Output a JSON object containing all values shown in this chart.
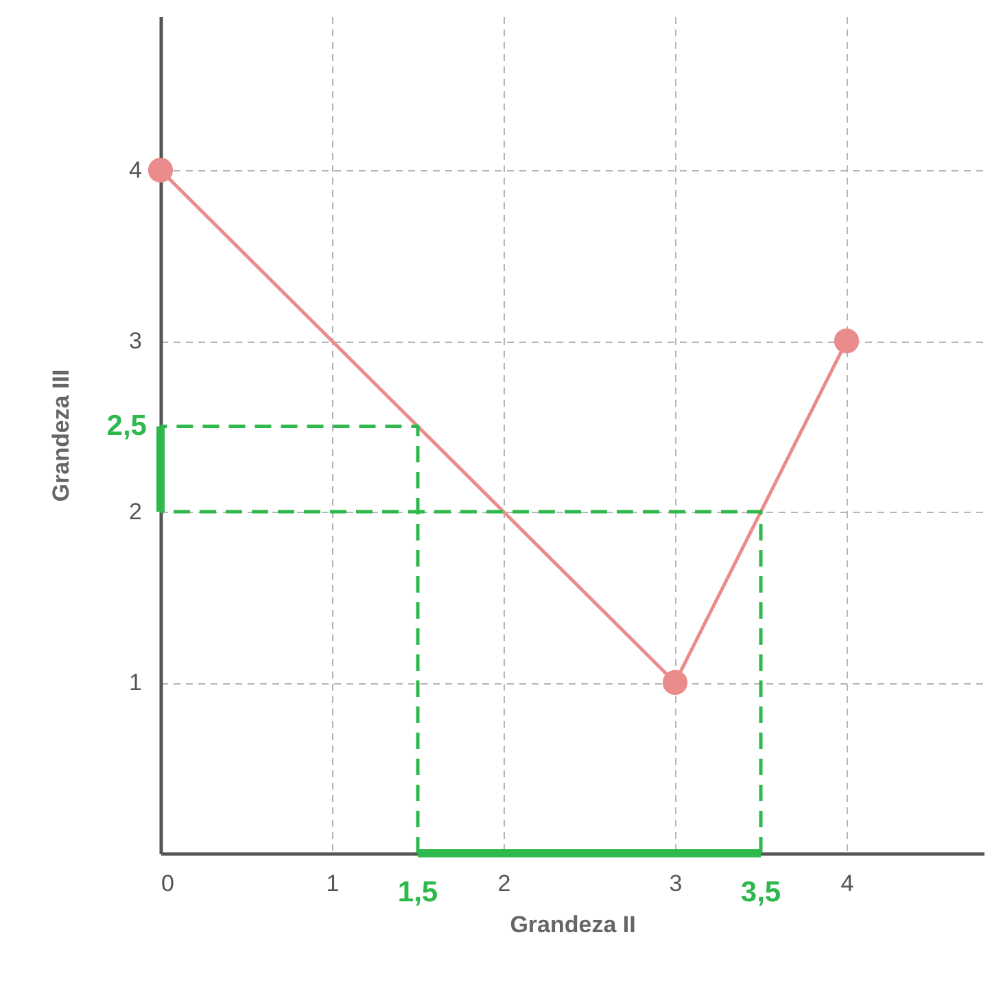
{
  "chart_data": {
    "type": "line",
    "xlabel": "Grandeza II",
    "ylabel": "Grandeza III",
    "xlim": [
      0,
      4.8
    ],
    "ylim": [
      0,
      4.9
    ],
    "xticks": [
      0,
      1,
      2,
      3,
      4
    ],
    "yticks": [
      1,
      2,
      3,
      4
    ],
    "grid": true,
    "series": [
      {
        "color": "#ea8c8c",
        "x": [
          0,
          3,
          4
        ],
        "values": [
          4,
          1,
          3
        ],
        "marker": "circle",
        "line_style": "solid"
      },
      {
        "color": "#2fb84c",
        "x": [
          1.5,
          1.5,
          0
        ],
        "values": [
          0,
          2.5,
          2.5
        ],
        "marker": "none",
        "line_style": "dashed"
      },
      {
        "color": "#2fb84c",
        "x": [
          3.5,
          3.5,
          0
        ],
        "values": [
          0,
          2,
          2
        ],
        "marker": "none",
        "line_style": "dashed"
      },
      {
        "color": "#2fb84c",
        "x": [
          1.5,
          3.5
        ],
        "values": [
          0,
          0
        ],
        "marker": "none",
        "line_style": "solid"
      },
      {
        "color": "#2fb84c",
        "x": [
          0,
          0
        ],
        "values": [
          2,
          2.5
        ],
        "marker": "none",
        "line_style": "solid"
      }
    ],
    "annotations": [
      {
        "text": "1,5",
        "x": 1.5,
        "y": 0
      },
      {
        "text": "3,5",
        "x": 3.5,
        "y": 0
      },
      {
        "text": "2,5",
        "x": 0,
        "y": 2.5
      }
    ]
  }
}
